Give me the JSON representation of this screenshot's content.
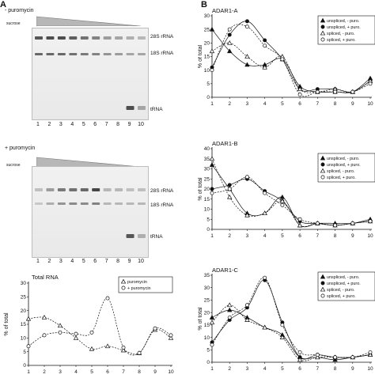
{
  "panel_a_label": "A",
  "panel_b_label": "B",
  "gel1": {
    "condition": "- puromycin",
    "gradient_label": "sucrose",
    "bands": [
      "28S rRNA",
      "18S rRNA",
      "tRNA"
    ],
    "lanes": [
      "1",
      "2",
      "3",
      "4",
      "5",
      "6",
      "7",
      "8",
      "9",
      "10"
    ],
    "rRNA28": [
      0.85,
      0.9,
      0.9,
      0.8,
      0.7,
      0.6,
      0.45,
      0.4,
      0.35,
      0.3
    ],
    "rRNA18": [
      0.75,
      0.75,
      0.75,
      0.7,
      0.65,
      0.6,
      0.5,
      0.45,
      0.4,
      0.4
    ],
    "tRNA": [
      0,
      0,
      0,
      0,
      0,
      0,
      0,
      0,
      0.9,
      0.4
    ]
  },
  "gel2": {
    "condition": "+ puromycin",
    "gradient_label": "sucrose",
    "bands": [
      "28S rRNA",
      "18S rRNA",
      "tRNA"
    ],
    "lanes": [
      "1",
      "2",
      "3",
      "4",
      "5",
      "6",
      "7",
      "8",
      "9",
      "10"
    ],
    "rRNA28": [
      0.25,
      0.45,
      0.65,
      0.7,
      0.75,
      0.95,
      0.3,
      0.3,
      0.25,
      0.25
    ],
    "rRNA18": [
      0.2,
      0.35,
      0.5,
      0.55,
      0.55,
      0.6,
      0.3,
      0.3,
      0.3,
      0.3
    ],
    "tRNA": [
      0,
      0,
      0,
      0,
      0,
      0,
      0,
      0,
      0.85,
      0.35
    ]
  },
  "chart_data": [
    {
      "type": "line",
      "title": "Total RNA",
      "ylabel": "% of total",
      "x": [
        1,
        2,
        3,
        4,
        5,
        6,
        7,
        8,
        9,
        10
      ],
      "ylim": [
        0,
        30
      ],
      "yticks": [
        0,
        5,
        10,
        15,
        20,
        25,
        30
      ],
      "xticks": [
        "1",
        "2",
        "3",
        "4",
        "5",
        "6",
        "7",
        "8",
        "9",
        "10"
      ],
      "legend_position": "top-right",
      "series": [
        {
          "name": "puromycin",
          "marker": "triangle-open",
          "values": [
            17,
            17.5,
            14.5,
            10,
            6,
            7,
            5.5,
            4.5,
            13,
            10
          ]
        },
        {
          "name": "+ puromycin",
          "marker": "circle-open",
          "values": [
            7,
            11,
            12,
            11.5,
            12,
            24.5,
            6.5,
            4.5,
            13.5,
            11
          ]
        }
      ]
    },
    {
      "type": "line",
      "title": "ADAR1-A",
      "ylabel": "% of total",
      "x": [
        1,
        2,
        3,
        4,
        5,
        6,
        7,
        8,
        9,
        10
      ],
      "ylim": [
        0,
        30
      ],
      "yticks": [
        0,
        5,
        10,
        15,
        20,
        25,
        30
      ],
      "xticks": [
        "1",
        "2",
        "3",
        "4",
        "5",
        "6",
        "7",
        "8",
        "9",
        "10"
      ],
      "legend_position": "top-right",
      "series": [
        {
          "name": "unspliced, - puro.",
          "marker": "triangle-filled",
          "values": [
            25,
            17,
            12,
            12,
            14,
            4,
            2,
            2,
            2,
            7
          ]
        },
        {
          "name": "unspliced, + puro.",
          "marker": "circle-filled",
          "values": [
            11,
            23,
            28,
            21,
            14,
            3,
            3,
            3,
            2,
            6
          ]
        },
        {
          "name": "spliced, - puro.",
          "marker": "triangle-open",
          "values": [
            17,
            20,
            15,
            11,
            15,
            3,
            2,
            3,
            2,
            6
          ]
        },
        {
          "name": "spliced, + puro.",
          "marker": "circle-open",
          "values": [
            10,
            25,
            26,
            19,
            14,
            1,
            2,
            2,
            2,
            5
          ]
        }
      ]
    },
    {
      "type": "line",
      "title": "ADAR1-B",
      "ylabel": "% of total",
      "x": [
        1,
        2,
        3,
        4,
        5,
        6,
        7,
        8,
        9,
        10
      ],
      "ylim": [
        0,
        40
      ],
      "yticks": [
        0,
        5,
        10,
        15,
        20,
        25,
        30,
        35,
        40
      ],
      "xticks": [
        "1",
        "2",
        "3",
        "4",
        "5",
        "6",
        "7",
        "8",
        "9",
        "10"
      ],
      "legend_position": "top-right",
      "series": [
        {
          "name": "unspliced, - puro.",
          "marker": "triangle-filled",
          "values": [
            32,
            20,
            8,
            8,
            16,
            2,
            3,
            3,
            3,
            5
          ]
        },
        {
          "name": "unspliced, + puro.",
          "marker": "circle-filled",
          "values": [
            20,
            22,
            25,
            19,
            14,
            4,
            3,
            2,
            3,
            4
          ]
        },
        {
          "name": "spliced, - puro.",
          "marker": "triangle-open",
          "values": [
            35,
            16,
            7,
            8,
            14,
            2,
            3,
            2,
            3,
            4
          ]
        },
        {
          "name": "spliced, + puro.",
          "marker": "circle-open",
          "values": [
            18,
            20,
            26,
            18,
            12,
            5,
            3,
            2,
            3,
            4
          ]
        }
      ]
    },
    {
      "type": "line",
      "title": "ADAR1-C",
      "ylabel": "% of total",
      "x": [
        1,
        2,
        3,
        4,
        5,
        6,
        7,
        8,
        9,
        10
      ],
      "ylim": [
        0,
        35
      ],
      "yticks": [
        0,
        5,
        10,
        15,
        20,
        25,
        30,
        35
      ],
      "xticks": [
        "1",
        "2",
        "3",
        "4",
        "5",
        "6",
        "7",
        "8",
        "9",
        "10"
      ],
      "legend_position": "top-right",
      "series": [
        {
          "name": "unspliced, - puro.",
          "marker": "triangle-filled",
          "values": [
            18,
            21,
            18,
            14,
            11,
            2,
            2,
            1,
            2,
            3
          ]
        },
        {
          "name": "unspliced, + puro.",
          "marker": "circle-filled",
          "values": [
            8,
            17,
            22,
            33,
            16,
            2,
            3,
            2,
            2,
            3
          ]
        },
        {
          "name": "spliced, - puro.",
          "marker": "triangle-open",
          "values": [
            16,
            23,
            17,
            14,
            10,
            1,
            2,
            2,
            2,
            3
          ]
        },
        {
          "name": "spliced, + puro.",
          "marker": "circle-open",
          "values": [
            7,
            18,
            23,
            34,
            15,
            4,
            3,
            2,
            2,
            4
          ]
        }
      ]
    }
  ]
}
